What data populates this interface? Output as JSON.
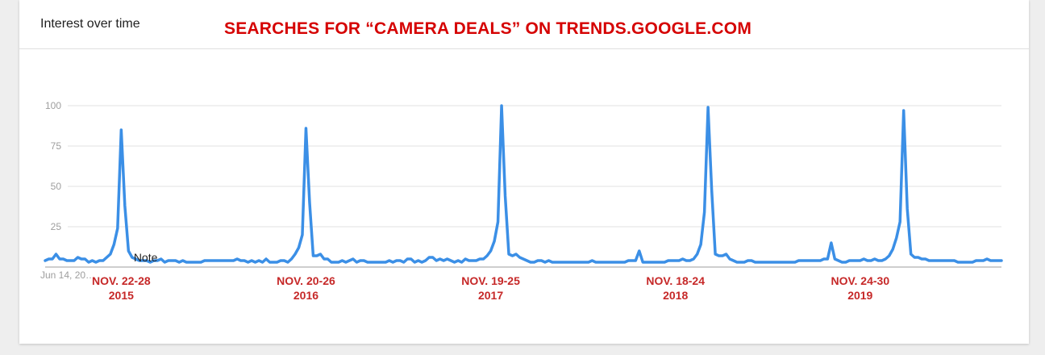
{
  "header": {
    "title": "Interest over time",
    "headline": "SEARCHES FOR “CAMERA DEALS” ON TRENDS.GOOGLE.COM"
  },
  "colors": {
    "line": "#3b8fe6",
    "annotation": "#c62828",
    "grid": "#e0e0e0"
  },
  "chart_data": {
    "type": "line",
    "title": "Interest over time",
    "ylim": [
      0,
      100
    ],
    "yticks": [
      25,
      50,
      75,
      100
    ],
    "grid": true,
    "x_first_label": "Jun 14, 20…",
    "note": "Note",
    "series": [
      {
        "values": [
          4,
          5,
          5,
          8,
          5,
          5,
          4,
          4,
          4,
          6,
          5,
          5,
          3,
          4,
          3,
          4,
          4,
          6,
          8,
          14,
          24,
          85,
          38,
          10,
          6,
          5,
          4,
          4,
          4,
          3,
          4,
          4,
          5,
          3,
          4,
          4,
          4,
          3,
          4,
          3,
          3,
          3,
          3,
          3,
          4,
          4,
          4,
          4,
          4,
          4,
          4,
          4,
          4,
          5,
          4,
          4,
          3,
          4,
          3,
          4,
          3,
          5,
          3,
          3,
          3,
          4,
          4,
          3,
          5,
          8,
          12,
          20,
          86,
          40,
          7,
          7,
          8,
          5,
          5,
          3,
          3,
          3,
          4,
          3,
          4,
          5,
          3,
          4,
          4,
          3,
          3,
          3,
          3,
          3,
          3,
          4,
          3,
          4,
          4,
          3,
          5,
          5,
          3,
          4,
          3,
          4,
          6,
          6,
          4,
          5,
          4,
          5,
          4,
          3,
          4,
          3,
          5,
          4,
          4,
          4,
          5,
          5,
          7,
          10,
          16,
          28,
          100,
          44,
          8,
          7,
          8,
          6,
          5,
          4,
          3,
          3,
          4,
          4,
          3,
          4,
          3,
          3,
          3,
          3,
          3,
          3,
          3,
          3,
          3,
          3,
          3,
          4,
          3,
          3,
          3,
          3,
          3,
          3,
          3,
          3,
          3,
          4,
          4,
          4,
          10,
          3,
          3,
          3,
          3,
          3,
          3,
          3,
          4,
          4,
          4,
          4,
          5,
          4,
          4,
          5,
          8,
          14,
          34,
          99,
          48,
          8,
          7,
          7,
          8,
          5,
          4,
          3,
          3,
          3,
          4,
          4,
          3,
          3,
          3,
          3,
          3,
          3,
          3,
          3,
          3,
          3,
          3,
          3,
          4,
          4,
          4,
          4,
          4,
          4,
          4,
          5,
          5,
          15,
          5,
          4,
          3,
          3,
          4,
          4,
          4,
          4,
          5,
          4,
          4,
          5,
          4,
          4,
          5,
          7,
          11,
          18,
          28,
          97,
          36,
          8,
          6,
          6,
          5,
          5,
          4,
          4,
          4,
          4,
          4,
          4,
          4,
          4,
          3,
          3,
          3,
          3,
          3,
          4,
          4,
          4,
          5,
          4,
          4,
          4,
          4
        ]
      }
    ],
    "annotations": [
      {
        "index": 21,
        "line1": "NOV. 22-28",
        "line2": "2015"
      },
      {
        "index": 72,
        "line1": "NOV. 20-26",
        "line2": "2016"
      },
      {
        "index": 123,
        "line1": "NOV. 19-25",
        "line2": "2017"
      },
      {
        "index": 174,
        "line1": "NOV. 18-24",
        "line2": "2018"
      },
      {
        "index": 225,
        "line1": "NOV. 24-30",
        "line2": "2019"
      }
    ]
  }
}
